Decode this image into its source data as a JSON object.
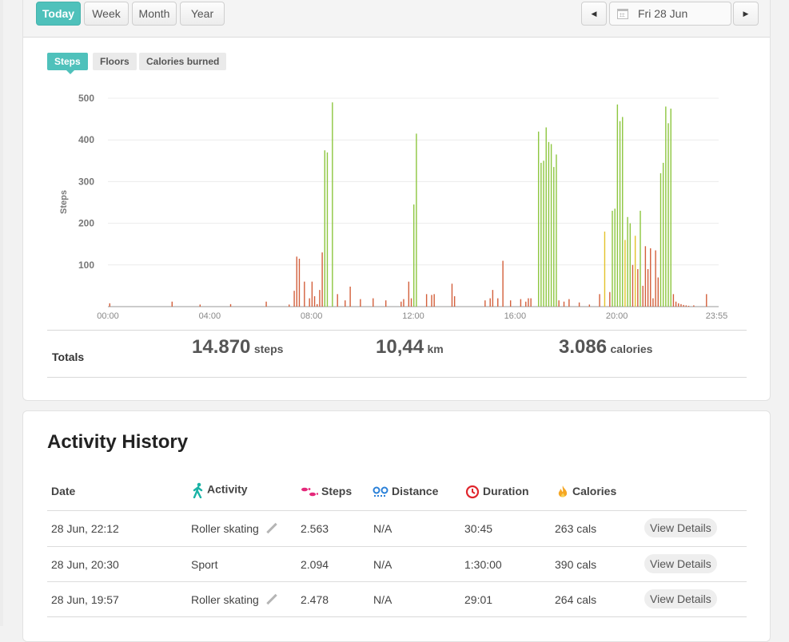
{
  "toolbar": {
    "periods": [
      "Today",
      "Week",
      "Month",
      "Year"
    ],
    "active_period": "Today",
    "date": "Fri 28 Jun",
    "prev_icon": "caret-left-icon",
    "next_icon": "caret-right-icon",
    "calendar_icon": "calendar-icon"
  },
  "metric_tabs": [
    "Steps",
    "Floors",
    "Calories burned"
  ],
  "active_metric": "Steps",
  "colors": {
    "accent": "#4fc1bb",
    "bar_low": "#d35f3b",
    "bar_mid": "#e3c22b",
    "bar_high": "#8dc63f"
  },
  "chart_data": {
    "type": "bar",
    "ylabel": "Steps",
    "ylim": [
      0,
      500
    ],
    "yticks": [
      100,
      200,
      300,
      400,
      500
    ],
    "xticks": [
      "00:00",
      "04:00",
      "08:00",
      "12:00",
      "16:00",
      "20:00",
      "23:55"
    ],
    "x_range_hours": [
      0,
      24
    ],
    "grid": true,
    "x": [
      0.05,
      2.5,
      3.6,
      4.8,
      6.2,
      7.1,
      7.3,
      7.4,
      7.5,
      7.7,
      7.9,
      8.0,
      8.1,
      8.2,
      8.3,
      8.4,
      8.5,
      8.6,
      8.8,
      9.0,
      9.3,
      9.5,
      9.9,
      10.4,
      10.9,
      11.5,
      11.6,
      11.8,
      11.9,
      12.0,
      12.1,
      12.5,
      12.7,
      12.8,
      13.5,
      13.6,
      14.8,
      15.0,
      15.1,
      15.3,
      15.5,
      15.8,
      16.2,
      16.4,
      16.5,
      16.6,
      16.9,
      17.0,
      17.1,
      17.2,
      17.3,
      17.4,
      17.5,
      17.6,
      17.7,
      17.9,
      18.1,
      18.5,
      18.9,
      19.3,
      19.5,
      19.7,
      19.8,
      19.9,
      20.0,
      20.1,
      20.2,
      20.3,
      20.4,
      20.5,
      20.6,
      20.7,
      20.8,
      20.9,
      21.0,
      21.1,
      21.2,
      21.3,
      21.4,
      21.5,
      21.6,
      21.7,
      21.8,
      21.9,
      22.0,
      22.1,
      22.2,
      22.3,
      22.4,
      22.5,
      22.6,
      22.7,
      22.8,
      23.0,
      23.5
    ],
    "values": [
      8,
      12,
      5,
      6,
      12,
      5,
      38,
      120,
      115,
      60,
      20,
      60,
      25,
      6,
      40,
      130,
      375,
      370,
      490,
      30,
      15,
      48,
      18,
      20,
      15,
      12,
      18,
      60,
      20,
      245,
      415,
      30,
      28,
      30,
      55,
      25,
      15,
      20,
      40,
      20,
      110,
      15,
      18,
      12,
      20,
      20,
      420,
      345,
      350,
      430,
      395,
      390,
      335,
      365,
      15,
      12,
      18,
      10,
      5,
      30,
      180,
      35,
      230,
      235,
      485,
      445,
      455,
      160,
      215,
      200,
      100,
      170,
      90,
      230,
      50,
      145,
      90,
      140,
      20,
      135,
      70,
      320,
      345,
      480,
      440,
      475,
      30,
      12,
      8,
      6,
      4,
      3,
      2,
      3,
      30
    ]
  },
  "totals": {
    "label": "Totals",
    "steps_value": "14.870",
    "steps_unit": "steps",
    "distance_value": "10,44",
    "distance_unit": "km",
    "calories_value": "3.086",
    "calories_unit": "calories"
  },
  "history": {
    "title": "Activity History",
    "columns": {
      "date": "Date",
      "activity": "Activity",
      "steps": "Steps",
      "distance": "Distance",
      "duration": "Duration",
      "calories": "Calories"
    },
    "column_icons": {
      "activity": "walking-person-icon",
      "steps": "footprints-icon",
      "distance": "map-pin-icon",
      "duration": "clock-icon",
      "calories": "flame-icon"
    },
    "rows": [
      {
        "date": "28 Jun, 22:12",
        "activity": "Roller skating",
        "editable": true,
        "steps": "2.563",
        "distance": "N/A",
        "duration": "30:45",
        "calories": "263 cals",
        "action": "View Details"
      },
      {
        "date": "28 Jun, 20:30",
        "activity": "Sport",
        "editable": false,
        "steps": "2.094",
        "distance": "N/A",
        "duration": "1:30:00",
        "calories": "390 cals",
        "action": "View Details"
      },
      {
        "date": "28 Jun, 19:57",
        "activity": "Roller skating",
        "editable": true,
        "steps": "2.478",
        "distance": "N/A",
        "duration": "29:01",
        "calories": "264 cals",
        "action": "View Details"
      }
    ]
  }
}
